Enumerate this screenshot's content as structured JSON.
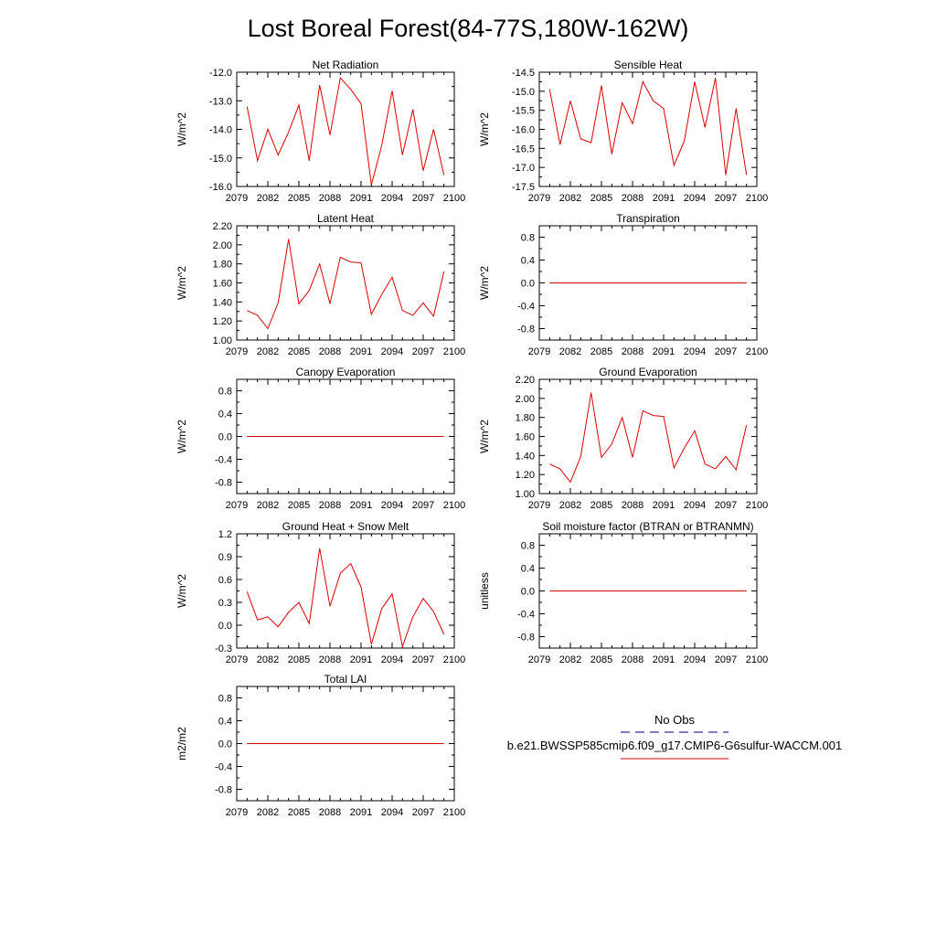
{
  "figure": {
    "title": "Lost Boreal Forest(84-77S,180W-162W)",
    "line_color": "#dd0000",
    "legend": {
      "entries": [
        {
          "label": "No Obs",
          "style": "dashed",
          "color": "#000080"
        },
        {
          "label": "b.e21.BWSSP585cmip6.f09_g17.CMIP6-G6sulfur-WACCM.001",
          "style": "solid",
          "color": "#dd0000"
        }
      ]
    }
  },
  "chart_data": [
    {
      "type": "line",
      "title": "Net Radiation",
      "ylabel": "W/m^2",
      "xlim": [
        2079,
        2100
      ],
      "ylim": [
        -16.0,
        -12.0
      ],
      "xticks": [
        "2079",
        "2082",
        "2085",
        "2088",
        "2091",
        "2094",
        "2097",
        "2100"
      ],
      "yticks": [
        "-12.0",
        "-13.0",
        "-14.0",
        "-15.0",
        "-16.0"
      ],
      "x": [
        2080,
        2081,
        2082,
        2083,
        2084,
        2085,
        2086,
        2087,
        2088,
        2089,
        2090,
        2091,
        2092,
        2093,
        2094,
        2095,
        2096,
        2097,
        2098,
        2099
      ],
      "values": [
        -13.2,
        -15.1,
        -14.0,
        -14.9,
        -14.1,
        -13.15,
        -15.1,
        -12.45,
        -14.2,
        -12.2,
        -12.6,
        -13.1,
        -15.95,
        -14.55,
        -12.65,
        -14.9,
        -13.3,
        -15.45,
        -14.0,
        -15.6
      ]
    },
    {
      "type": "line",
      "title": "Sensible Heat",
      "ylabel": "W/m^2",
      "xlim": [
        2079,
        2100
      ],
      "ylim": [
        -17.5,
        -14.5
      ],
      "xticks": [
        "2079",
        "2082",
        "2085",
        "2088",
        "2091",
        "2094",
        "2097",
        "2100"
      ],
      "yticks": [
        "-14.5",
        "-15.0",
        "-15.5",
        "-16.0",
        "-16.5",
        "-17.0",
        "-17.5"
      ],
      "x": [
        2080,
        2081,
        2082,
        2083,
        2084,
        2085,
        2086,
        2087,
        2088,
        2089,
        2090,
        2091,
        2092,
        2093,
        2094,
        2095,
        2096,
        2097,
        2098,
        2099
      ],
      "values": [
        -14.95,
        -16.4,
        -15.25,
        -16.25,
        -16.35,
        -14.85,
        -16.65,
        -15.3,
        -15.85,
        -14.75,
        -15.25,
        -15.45,
        -16.95,
        -16.3,
        -14.75,
        -15.95,
        -14.65,
        -17.2,
        -15.45,
        -17.2
      ]
    },
    {
      "type": "line",
      "title": "Latent Heat",
      "ylabel": "W/m^2",
      "xlim": [
        2079,
        2100
      ],
      "ylim": [
        1.0,
        2.2
      ],
      "xticks": [
        "2079",
        "2082",
        "2085",
        "2088",
        "2091",
        "2094",
        "2097",
        "2100"
      ],
      "yticks": [
        "2.20",
        "2.00",
        "1.80",
        "1.60",
        "1.40",
        "1.20",
        "1.00"
      ],
      "x": [
        2080,
        2081,
        2082,
        2083,
        2084,
        2085,
        2086,
        2087,
        2088,
        2089,
        2090,
        2091,
        2092,
        2093,
        2094,
        2095,
        2096,
        2097,
        2098,
        2099
      ],
      "values": [
        1.31,
        1.26,
        1.12,
        1.39,
        2.06,
        1.38,
        1.52,
        1.8,
        1.38,
        1.87,
        1.82,
        1.81,
        1.27,
        1.48,
        1.66,
        1.31,
        1.26,
        1.39,
        1.25,
        1.72
      ]
    },
    {
      "type": "line",
      "title": "Transpiration",
      "ylabel": "W/m^2",
      "xlim": [
        2079,
        2100
      ],
      "ylim": [
        -1.0,
        1.0
      ],
      "xticks": [
        "2079",
        "2082",
        "2085",
        "2088",
        "2091",
        "2094",
        "2097",
        "2100"
      ],
      "yticks": [
        "0.8",
        "0.4",
        "0.0",
        "-0.4",
        "-0.8"
      ],
      "x": [
        2080,
        2081,
        2082,
        2083,
        2084,
        2085,
        2086,
        2087,
        2088,
        2089,
        2090,
        2091,
        2092,
        2093,
        2094,
        2095,
        2096,
        2097,
        2098,
        2099
      ],
      "values": [
        0,
        0,
        0,
        0,
        0,
        0,
        0,
        0,
        0,
        0,
        0,
        0,
        0,
        0,
        0,
        0,
        0,
        0,
        0,
        0
      ]
    },
    {
      "type": "line",
      "title": "Canopy Evaporation",
      "ylabel": "W/m^2",
      "xlim": [
        2079,
        2100
      ],
      "ylim": [
        -1.0,
        1.0
      ],
      "xticks": [
        "2079",
        "2082",
        "2085",
        "2088",
        "2091",
        "2094",
        "2097",
        "2100"
      ],
      "yticks": [
        "0.8",
        "0.4",
        "0.0",
        "-0.4",
        "-0.8"
      ],
      "x": [
        2080,
        2081,
        2082,
        2083,
        2084,
        2085,
        2086,
        2087,
        2088,
        2089,
        2090,
        2091,
        2092,
        2093,
        2094,
        2095,
        2096,
        2097,
        2098,
        2099
      ],
      "values": [
        0,
        0,
        0,
        0,
        0,
        0,
        0,
        0,
        0,
        0,
        0,
        0,
        0,
        0,
        0,
        0,
        0,
        0,
        0,
        0
      ]
    },
    {
      "type": "line",
      "title": "Ground Evaporation",
      "ylabel": "W/m^2",
      "xlim": [
        2079,
        2100
      ],
      "ylim": [
        1.0,
        2.2
      ],
      "xticks": [
        "2079",
        "2082",
        "2085",
        "2088",
        "2091",
        "2094",
        "2097",
        "2100"
      ],
      "yticks": [
        "2.20",
        "2.00",
        "1.80",
        "1.60",
        "1.40",
        "1.20",
        "1.00"
      ],
      "x": [
        2080,
        2081,
        2082,
        2083,
        2084,
        2085,
        2086,
        2087,
        2088,
        2089,
        2090,
        2091,
        2092,
        2093,
        2094,
        2095,
        2096,
        2097,
        2098,
        2099
      ],
      "values": [
        1.31,
        1.26,
        1.12,
        1.39,
        2.06,
        1.38,
        1.52,
        1.8,
        1.38,
        1.87,
        1.82,
        1.81,
        1.27,
        1.48,
        1.66,
        1.31,
        1.26,
        1.39,
        1.25,
        1.72
      ]
    },
    {
      "type": "line",
      "title": "Ground Heat + Snow Melt",
      "ylabel": "W/m^2",
      "xlim": [
        2079,
        2100
      ],
      "ylim": [
        -0.3,
        1.2
      ],
      "xticks": [
        "2079",
        "2082",
        "2085",
        "2088",
        "2091",
        "2094",
        "2097",
        "2100"
      ],
      "yticks": [
        "1.2",
        "0.9",
        "0.6",
        "0.3",
        "0.0",
        "-0.3"
      ],
      "x": [
        2080,
        2081,
        2082,
        2083,
        2084,
        2085,
        2086,
        2087,
        2088,
        2089,
        2090,
        2091,
        2092,
        2093,
        2094,
        2095,
        2096,
        2097,
        2098,
        2099
      ],
      "values": [
        0.44,
        0.07,
        0.11,
        -0.02,
        0.17,
        0.3,
        0.02,
        1.01,
        0.25,
        0.68,
        0.81,
        0.5,
        -0.25,
        0.22,
        0.41,
        -0.28,
        0.11,
        0.35,
        0.18,
        -0.12
      ]
    },
    {
      "type": "line",
      "title": "Soil moisture factor (BTRAN or BTRANMN)",
      "ylabel": "unitless",
      "xlim": [
        2079,
        2100
      ],
      "ylim": [
        -1.0,
        1.0
      ],
      "xticks": [
        "2079",
        "2082",
        "2085",
        "2088",
        "2091",
        "2094",
        "2097",
        "2100"
      ],
      "yticks": [
        "0.8",
        "0.4",
        "0.0",
        "-0.4",
        "-0.8"
      ],
      "x": [
        2080,
        2081,
        2082,
        2083,
        2084,
        2085,
        2086,
        2087,
        2088,
        2089,
        2090,
        2091,
        2092,
        2093,
        2094,
        2095,
        2096,
        2097,
        2098,
        2099
      ],
      "values": [
        0,
        0,
        0,
        0,
        0,
        0,
        0,
        0,
        0,
        0,
        0,
        0,
        0,
        0,
        0,
        0,
        0,
        0,
        0,
        0
      ]
    },
    {
      "type": "line",
      "title": "Total LAI",
      "ylabel": "m2/m2",
      "xlim": [
        2079,
        2100
      ],
      "ylim": [
        -1.0,
        1.0
      ],
      "xticks": [
        "2079",
        "2082",
        "2085",
        "2088",
        "2091",
        "2094",
        "2097",
        "2100"
      ],
      "yticks": [
        "0.8",
        "0.4",
        "0.0",
        "-0.4",
        "-0.8"
      ],
      "x": [
        2080,
        2081,
        2082,
        2083,
        2084,
        2085,
        2086,
        2087,
        2088,
        2089,
        2090,
        2091,
        2092,
        2093,
        2094,
        2095,
        2096,
        2097,
        2098,
        2099
      ],
      "values": [
        0,
        0,
        0,
        0,
        0,
        0,
        0,
        0,
        0,
        0,
        0,
        0,
        0,
        0,
        0,
        0,
        0,
        0,
        0,
        0
      ]
    }
  ]
}
